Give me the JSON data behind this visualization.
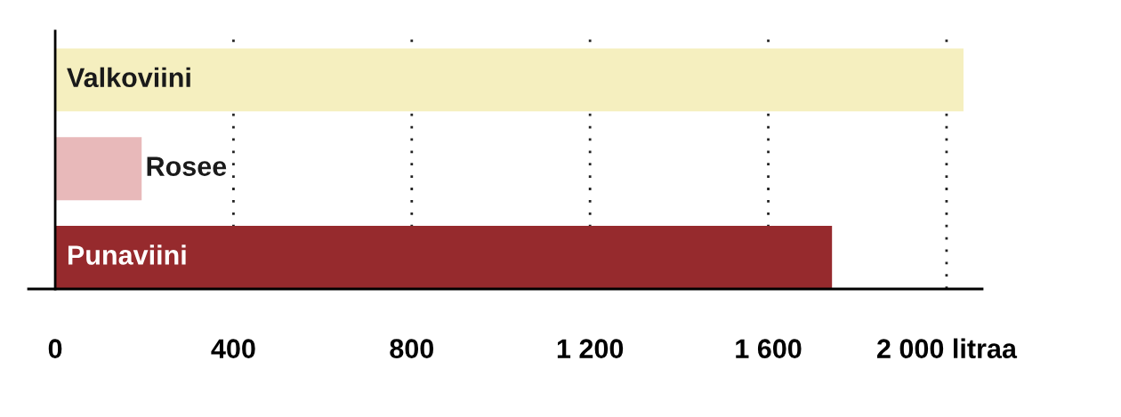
{
  "chart_data": {
    "type": "bar",
    "orientation": "horizontal",
    "categories": [
      "Valkoviini",
      "Rosee",
      "Punaviini"
    ],
    "values": [
      2038,
      194,
      1743
    ],
    "colors": [
      "#f5efbf",
      "#e8b9ba",
      "#962a2d"
    ],
    "xlim": [
      -60,
      2080
    ],
    "xticks": [
      0,
      400,
      800,
      {
        "value": 1200,
        "label": "1 200"
      },
      {
        "value": 1600,
        "label": "1 600"
      },
      {
        "value": 2000,
        "label": "2 000 litraa"
      }
    ],
    "grid": "x",
    "line_style": "dotted",
    "tick_labels": "x"
  }
}
